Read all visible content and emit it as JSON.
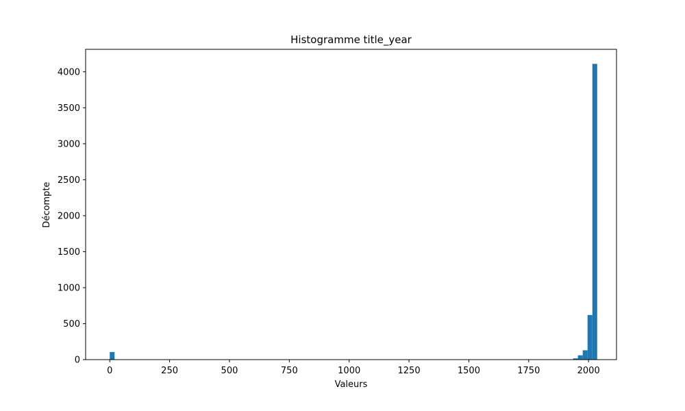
{
  "chart_data": {
    "type": "bar",
    "title": "Histogramme title_year",
    "xlabel": "Valeurs",
    "ylabel": "Décompte",
    "xlim": [
      -100.8,
      2116.8
    ],
    "ylim": [
      0,
      4312
    ],
    "xticks": [
      0,
      250,
      500,
      750,
      1000,
      1250,
      1500,
      1750,
      2000
    ],
    "yticks": [
      0,
      500,
      1000,
      1500,
      2000,
      2500,
      3000,
      3500,
      4000
    ],
    "bin_width": 20.16,
    "bar_color": "#1f77b4",
    "grid": false,
    "legend": "none",
    "bins": [
      {
        "x0": 0,
        "count": 106
      },
      {
        "x0": 1915.2,
        "count": 3
      },
      {
        "x0": 1935.36,
        "count": 18
      },
      {
        "x0": 1955.52,
        "count": 60
      },
      {
        "x0": 1975.68,
        "count": 130
      },
      {
        "x0": 1995.84,
        "count": 620
      },
      {
        "x0": 2016.0,
        "count": 4110
      }
    ]
  }
}
